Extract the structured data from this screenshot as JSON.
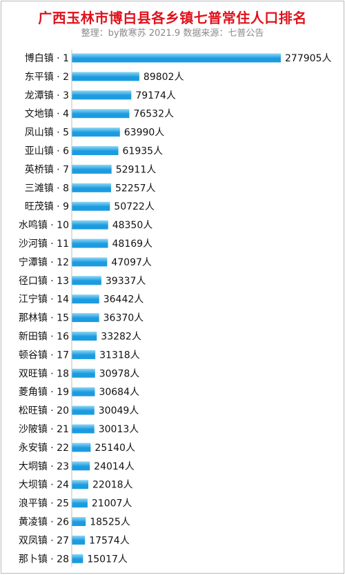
{
  "header": {
    "title": "广西玉林市博白县各乡镇七普常住人口排名",
    "subtitle": "整理：by散寒苏 2021.9 数据来源：七普公告"
  },
  "colors": {
    "title": "#e0111b",
    "bar_light": "#8fd7f4",
    "bar_dark": "#1b9be0",
    "text": "#111111"
  },
  "chart_data": {
    "type": "bar",
    "orientation": "horizontal",
    "unit": "人",
    "categories": [
      "博白镇 · 1",
      "东平镇 · 2",
      "龙潭镇 · 3",
      "文地镇 · 4",
      "凤山镇 · 5",
      "亚山镇 · 6",
      "英桥镇 · 7",
      "三滩镇 · 8",
      "旺茂镇 · 9",
      "水鸣镇 · 10",
      "沙河镇 · 11",
      "宁潭镇 · 12",
      "径口镇 · 13",
      "江宁镇 · 14",
      "那林镇 · 15",
      "新田镇 · 16",
      "顿谷镇 · 17",
      "双旺镇 · 18",
      "菱角镇 · 19",
      "松旺镇 · 20",
      "沙陂镇 · 21",
      "永安镇 · 22",
      "大垌镇 · 23",
      "大坝镇 · 24",
      "浪平镇 · 25",
      "黄凌镇 · 26",
      "双凤镇 · 27",
      "那卜镇 · 28"
    ],
    "values": [
      277905,
      89802,
      79174,
      76532,
      63990,
      61935,
      52911,
      52257,
      50722,
      48350,
      48169,
      47097,
      39337,
      36442,
      36370,
      33282,
      31318,
      30978,
      30684,
      30049,
      30013,
      25140,
      24014,
      22018,
      21007,
      18525,
      17574,
      15017
    ],
    "value_labels": [
      "277905人",
      "89802人",
      "79174人",
      "76532人",
      "63990人",
      "61935人",
      "52911人",
      "52257人",
      "50722人",
      "48350人",
      "48169人",
      "47097人",
      "39337人",
      "36442人",
      "36370人",
      "33282人",
      "31318人",
      "30978人",
      "30684人",
      "30049人",
      "30013人",
      "25140人",
      "24014人",
      "22018人",
      "21007人",
      "18525人",
      "17574人",
      "15017人"
    ],
    "xlim": [
      0,
      277905
    ],
    "grid": false,
    "legend": "none"
  }
}
